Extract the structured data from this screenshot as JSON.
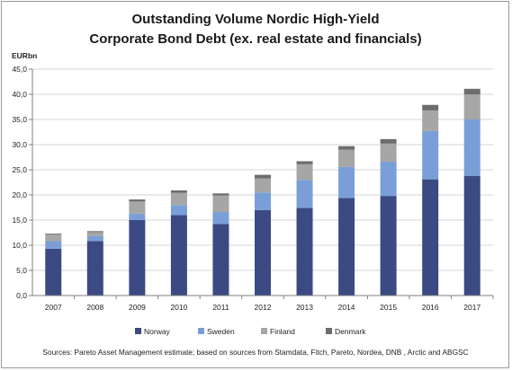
{
  "chart_data": {
    "type": "bar",
    "stacked": true,
    "title": [
      "Outstanding Volume Nordic High-Yield",
      "Corporate Bond Debt (ex. real estate and financials)"
    ],
    "ylabel": "EURbn",
    "ylim": [
      0,
      45
    ],
    "ytick_step": 5,
    "ytick_labels": [
      "0,0",
      "5,0",
      "10,0",
      "15,0",
      "20,0",
      "25,0",
      "30,0",
      "35,0",
      "40,0",
      "45,0"
    ],
    "grid": true,
    "legend_position": "bottom",
    "categories": [
      "2007",
      "2008",
      "2009",
      "2010",
      "2011",
      "2012",
      "2013",
      "2014",
      "2015",
      "2016",
      "2017"
    ],
    "series": [
      {
        "name": "Norway",
        "color": "#3b4a82",
        "values": [
          9.3,
          10.8,
          15.0,
          16.0,
          14.2,
          17.0,
          17.4,
          19.4,
          19.8,
          23.1,
          23.8
        ]
      },
      {
        "name": "Sweden",
        "color": "#7a9fd8",
        "values": [
          1.5,
          1.0,
          1.3,
          2.0,
          2.4,
          3.5,
          5.6,
          6.2,
          6.8,
          9.6,
          11.2
        ]
      },
      {
        "name": "Finland",
        "color": "#a6a6a6",
        "values": [
          1.3,
          0.8,
          2.4,
          2.4,
          3.3,
          2.8,
          3.1,
          3.4,
          3.6,
          4.1,
          5.0
        ]
      },
      {
        "name": "Denmark",
        "color": "#6d6d6d",
        "values": [
          0.2,
          0.2,
          0.4,
          0.5,
          0.4,
          0.7,
          0.6,
          0.7,
          0.9,
          1.1,
          1.1
        ]
      }
    ]
  },
  "source": "Sources: Pareto Asset Management estimate; based on sources from Stamdata, Fitch, Pareto, Nordea, DNB , Arctic and ABGSC"
}
